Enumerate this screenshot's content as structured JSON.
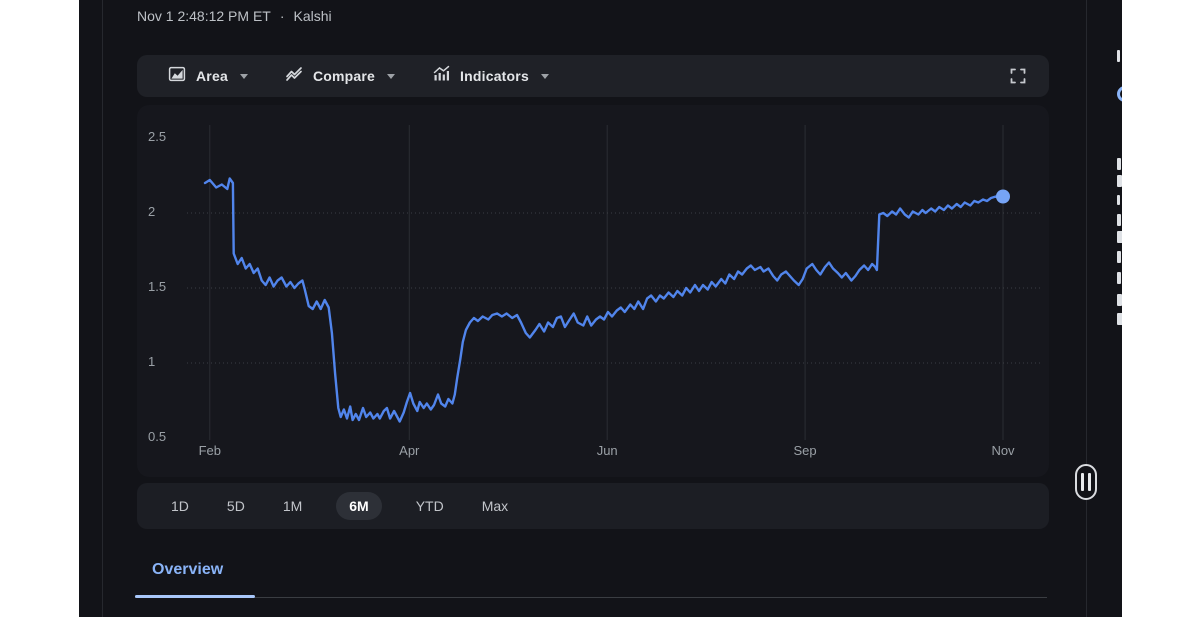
{
  "header": {
    "timestamp": "Nov 1 2:48:12 PM ET",
    "separator": "·",
    "source": "Kalshi"
  },
  "toolbar": {
    "area_label": "Area",
    "compare_label": "Compare",
    "indicators_label": "Indicators"
  },
  "ranges": {
    "items": [
      "1D",
      "5D",
      "1M",
      "6M",
      "YTD",
      "Max"
    ],
    "active": "6M"
  },
  "tabs": {
    "overview": "Overview"
  },
  "colors": {
    "page_bg": "#121318",
    "card_bg": "#16171d",
    "bar_bg": "#1f2127",
    "accent_blue": "#8ab4f8",
    "line_blue": "#5185ec",
    "dot_blue": "#76a4f6",
    "axis_text": "#9aa0a6",
    "pill_bg": "#2d3037"
  },
  "chart_data": {
    "type": "line",
    "title": "Kalshi price chart (6M view)",
    "xlabel": "",
    "ylabel": "",
    "ylim": [
      0.5,
      2.5
    ],
    "legend": "none",
    "grid": {
      "horizontal": "dotted",
      "vertical": "solid-faint"
    },
    "x_ticks": [
      {
        "label": "Feb",
        "f": 0.006
      },
      {
        "label": "Apr",
        "f": 0.256
      },
      {
        "label": "Jun",
        "f": 0.504
      },
      {
        "label": "Sep",
        "f": 0.752
      },
      {
        "label": "Nov",
        "f": 1.0
      }
    ],
    "y_ticks": [
      {
        "label": "2.5",
        "v": 2.5,
        "dotted": false
      },
      {
        "label": "2",
        "v": 2.0,
        "dotted": true
      },
      {
        "label": "1.5",
        "v": 1.5,
        "dotted": true
      },
      {
        "label": "1",
        "v": 1.0,
        "dotted": true
      },
      {
        "label": "0.5",
        "v": 0.5,
        "dotted": false
      }
    ],
    "end_dot": {
      "f": 1.0,
      "v": 2.11,
      "color": "#76a4f6"
    },
    "series": [
      {
        "name": "Kalshi",
        "color": "#5185ec",
        "points": [
          [
            0.0,
            2.2
          ],
          [
            0.006,
            2.22
          ],
          [
            0.014,
            2.17
          ],
          [
            0.021,
            2.19
          ],
          [
            0.028,
            2.16
          ],
          [
            0.031,
            2.23
          ],
          [
            0.035,
            2.2
          ],
          [
            0.036,
            1.73
          ],
          [
            0.041,
            1.66
          ],
          [
            0.046,
            1.7
          ],
          [
            0.051,
            1.63
          ],
          [
            0.056,
            1.66
          ],
          [
            0.061,
            1.6
          ],
          [
            0.066,
            1.63
          ],
          [
            0.071,
            1.55
          ],
          [
            0.076,
            1.52
          ],
          [
            0.081,
            1.57
          ],
          [
            0.086,
            1.51
          ],
          [
            0.091,
            1.55
          ],
          [
            0.096,
            1.57
          ],
          [
            0.102,
            1.51
          ],
          [
            0.107,
            1.54
          ],
          [
            0.112,
            1.5
          ],
          [
            0.117,
            1.53
          ],
          [
            0.122,
            1.55
          ],
          [
            0.125,
            1.49
          ],
          [
            0.13,
            1.38
          ],
          [
            0.135,
            1.36
          ],
          [
            0.14,
            1.41
          ],
          [
            0.145,
            1.36
          ],
          [
            0.15,
            1.42
          ],
          [
            0.155,
            1.37
          ],
          [
            0.159,
            1.2
          ],
          [
            0.163,
            0.93
          ],
          [
            0.167,
            0.7
          ],
          [
            0.17,
            0.64
          ],
          [
            0.174,
            0.69
          ],
          [
            0.178,
            0.63
          ],
          [
            0.182,
            0.71
          ],
          [
            0.185,
            0.62
          ],
          [
            0.189,
            0.66
          ],
          [
            0.193,
            0.62
          ],
          [
            0.198,
            0.7
          ],
          [
            0.202,
            0.64
          ],
          [
            0.207,
            0.67
          ],
          [
            0.211,
            0.63
          ],
          [
            0.216,
            0.66
          ],
          [
            0.219,
            0.63
          ],
          [
            0.224,
            0.68
          ],
          [
            0.228,
            0.7
          ],
          [
            0.232,
            0.63
          ],
          [
            0.237,
            0.68
          ],
          [
            0.241,
            0.64
          ],
          [
            0.244,
            0.61
          ],
          [
            0.249,
            0.67
          ],
          [
            0.253,
            0.74
          ],
          [
            0.257,
            0.8
          ],
          [
            0.261,
            0.73
          ],
          [
            0.266,
            0.68
          ],
          [
            0.269,
            0.74
          ],
          [
            0.274,
            0.7
          ],
          [
            0.278,
            0.73
          ],
          [
            0.283,
            0.69
          ],
          [
            0.287,
            0.72
          ],
          [
            0.292,
            0.79
          ],
          [
            0.296,
            0.73
          ],
          [
            0.301,
            0.71
          ],
          [
            0.305,
            0.76
          ],
          [
            0.31,
            0.73
          ],
          [
            0.313,
            0.79
          ],
          [
            0.316,
            0.9
          ],
          [
            0.32,
            1.03
          ],
          [
            0.323,
            1.14
          ],
          [
            0.327,
            1.22
          ],
          [
            0.332,
            1.27
          ],
          [
            0.337,
            1.3
          ],
          [
            0.342,
            1.28
          ],
          [
            0.348,
            1.31
          ],
          [
            0.355,
            1.29
          ],
          [
            0.36,
            1.32
          ],
          [
            0.366,
            1.33
          ],
          [
            0.372,
            1.31
          ],
          [
            0.378,
            1.33
          ],
          [
            0.385,
            1.3
          ],
          [
            0.391,
            1.32
          ],
          [
            0.396,
            1.27
          ],
          [
            0.402,
            1.2
          ],
          [
            0.407,
            1.17
          ],
          [
            0.414,
            1.22
          ],
          [
            0.419,
            1.26
          ],
          [
            0.425,
            1.21
          ],
          [
            0.43,
            1.27
          ],
          [
            0.436,
            1.24
          ],
          [
            0.441,
            1.3
          ],
          [
            0.446,
            1.31
          ],
          [
            0.451,
            1.24
          ],
          [
            0.457,
            1.29
          ],
          [
            0.462,
            1.33
          ],
          [
            0.467,
            1.27
          ],
          [
            0.474,
            1.25
          ],
          [
            0.479,
            1.31
          ],
          [
            0.484,
            1.25
          ],
          [
            0.49,
            1.29
          ],
          [
            0.495,
            1.31
          ],
          [
            0.5,
            1.29
          ],
          [
            0.505,
            1.34
          ],
          [
            0.51,
            1.31
          ],
          [
            0.516,
            1.35
          ],
          [
            0.521,
            1.37
          ],
          [
            0.526,
            1.34
          ],
          [
            0.533,
            1.39
          ],
          [
            0.538,
            1.36
          ],
          [
            0.543,
            1.41
          ],
          [
            0.549,
            1.36
          ],
          [
            0.554,
            1.43
          ],
          [
            0.559,
            1.45
          ],
          [
            0.565,
            1.41
          ],
          [
            0.57,
            1.45
          ],
          [
            0.575,
            1.43
          ],
          [
            0.581,
            1.47
          ],
          [
            0.587,
            1.44
          ],
          [
            0.592,
            1.48
          ],
          [
            0.598,
            1.45
          ],
          [
            0.603,
            1.5
          ],
          [
            0.608,
            1.47
          ],
          [
            0.614,
            1.52
          ],
          [
            0.619,
            1.48
          ],
          [
            0.624,
            1.52
          ],
          [
            0.63,
            1.49
          ],
          [
            0.635,
            1.54
          ],
          [
            0.64,
            1.51
          ],
          [
            0.647,
            1.56
          ],
          [
            0.652,
            1.53
          ],
          [
            0.657,
            1.59
          ],
          [
            0.663,
            1.56
          ],
          [
            0.668,
            1.61
          ],
          [
            0.673,
            1.59
          ],
          [
            0.679,
            1.63
          ],
          [
            0.684,
            1.65
          ],
          [
            0.689,
            1.62
          ],
          [
            0.696,
            1.64
          ],
          [
            0.7,
            1.61
          ],
          [
            0.706,
            1.63
          ],
          [
            0.712,
            1.58
          ],
          [
            0.717,
            1.55
          ],
          [
            0.722,
            1.59
          ],
          [
            0.728,
            1.61
          ],
          [
            0.733,
            1.58
          ],
          [
            0.738,
            1.55
          ],
          [
            0.744,
            1.52
          ],
          [
            0.749,
            1.56
          ],
          [
            0.754,
            1.63
          ],
          [
            0.761,
            1.66
          ],
          [
            0.766,
            1.62
          ],
          [
            0.771,
            1.59
          ],
          [
            0.777,
            1.64
          ],
          [
            0.782,
            1.67
          ],
          [
            0.787,
            1.63
          ],
          [
            0.793,
            1.6
          ],
          [
            0.798,
            1.57
          ],
          [
            0.803,
            1.6
          ],
          [
            0.81,
            1.55
          ],
          [
            0.815,
            1.58
          ],
          [
            0.82,
            1.62
          ],
          [
            0.826,
            1.65
          ],
          [
            0.831,
            1.62
          ],
          [
            0.836,
            1.66
          ],
          [
            0.84,
            1.64
          ],
          [
            0.842,
            1.62
          ],
          [
            0.845,
            1.99
          ],
          [
            0.85,
            2.0
          ],
          [
            0.855,
            1.98
          ],
          [
            0.861,
            2.01
          ],
          [
            0.866,
            1.99
          ],
          [
            0.871,
            2.03
          ],
          [
            0.877,
            1.99
          ],
          [
            0.882,
            1.97
          ],
          [
            0.887,
            2.01
          ],
          [
            0.894,
            1.99
          ],
          [
            0.899,
            2.02
          ],
          [
            0.903,
            2.0
          ],
          [
            0.91,
            2.03
          ],
          [
            0.915,
            2.01
          ],
          [
            0.92,
            2.04
          ],
          [
            0.926,
            2.02
          ],
          [
            0.931,
            2.05
          ],
          [
            0.936,
            2.03
          ],
          [
            0.942,
            2.06
          ],
          [
            0.947,
            2.04
          ],
          [
            0.952,
            2.07
          ],
          [
            0.959,
            2.05
          ],
          [
            0.964,
            2.08
          ],
          [
            0.969,
            2.07
          ],
          [
            0.975,
            2.09
          ],
          [
            0.98,
            2.08
          ],
          [
            0.985,
            2.1
          ],
          [
            0.991,
            2.11
          ],
          [
            0.996,
            2.1
          ],
          [
            1.0,
            2.11
          ]
        ]
      }
    ]
  }
}
